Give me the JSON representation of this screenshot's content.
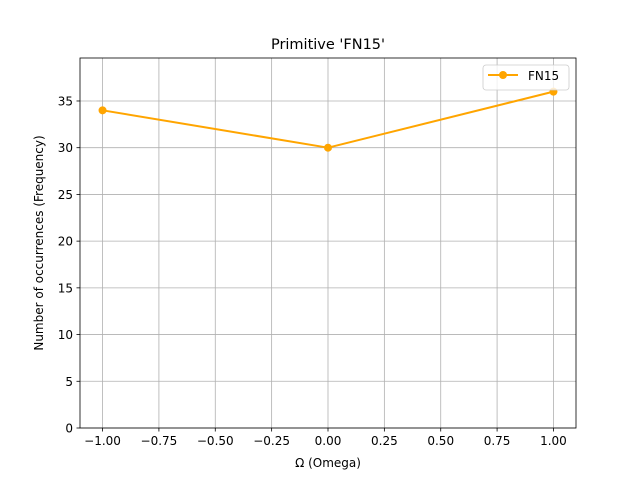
{
  "chart_data": {
    "type": "line",
    "title": "Primitive 'FN15'",
    "xlabel": "Ω (Omega)",
    "ylabel": "Number of occurrences (Frequency)",
    "xlim": [
      -1.1,
      1.1
    ],
    "ylim": [
      0,
      39.6
    ],
    "xticks": [
      -1.0,
      -0.75,
      -0.5,
      -0.25,
      0.0,
      0.25,
      0.5,
      0.75,
      1.0
    ],
    "xtick_labels": [
      "−1.00",
      "−0.75",
      "−0.50",
      "−0.25",
      "0.00",
      "0.25",
      "0.50",
      "0.75",
      "1.00"
    ],
    "yticks": [
      0,
      5,
      10,
      15,
      20,
      25,
      30,
      35
    ],
    "ytick_labels": [
      "0",
      "5",
      "10",
      "15",
      "20",
      "25",
      "30",
      "35"
    ],
    "grid": true,
    "legend_position": "top-right",
    "series": [
      {
        "name": "FN15",
        "color": "#ffa500",
        "marker": "circle",
        "x": [
          -1.0,
          0.0,
          1.0
        ],
        "y": [
          34,
          30,
          36
        ]
      }
    ]
  }
}
